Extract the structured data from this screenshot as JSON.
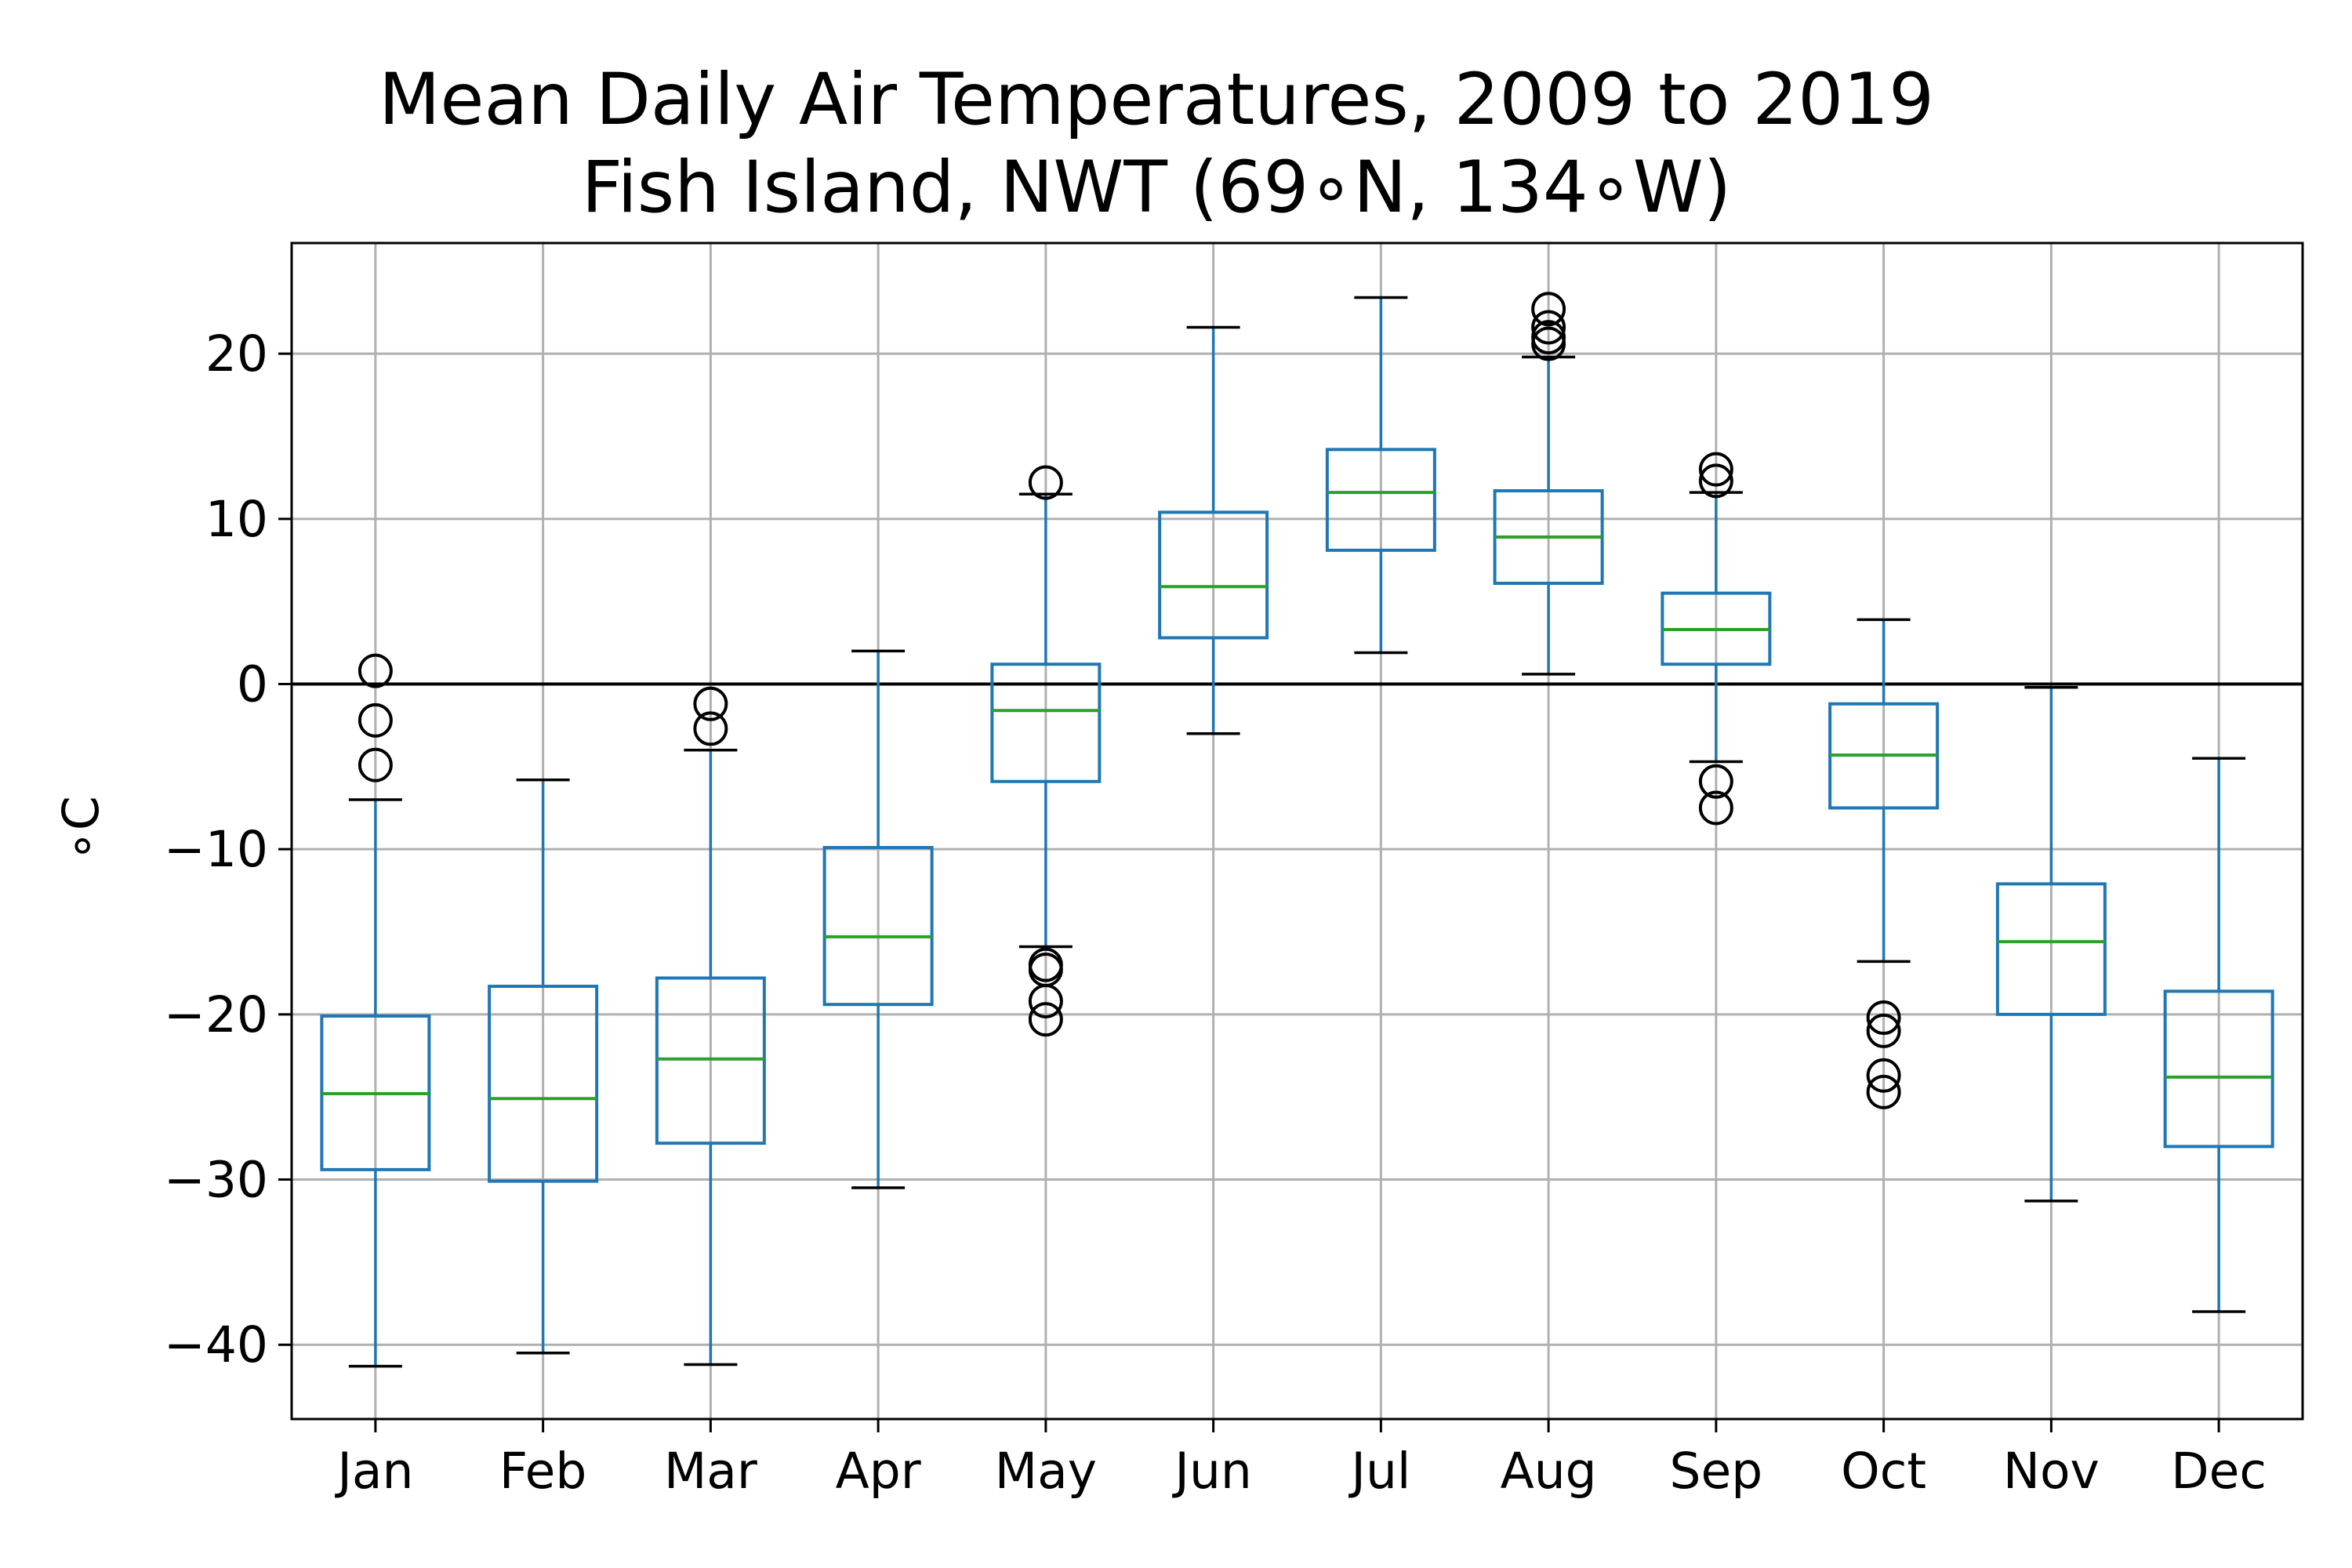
{
  "chart_data": {
    "type": "boxplot",
    "title_lines": [
      "Mean Daily Air Temperatures, 2009 to 2019",
      "Fish Island, NWT (69∘N, 134∘W)"
    ],
    "xlabel": "",
    "ylabel": "∘C",
    "ylim": [
      -44.5,
      26.7
    ],
    "yticks": [
      20,
      10,
      0,
      -10,
      -20,
      -30,
      -40
    ],
    "ytick_labels": [
      "20",
      "10",
      "0",
      "−10",
      "−20",
      "−30",
      "−40"
    ],
    "grid": true,
    "zero_line": 0,
    "colors": {
      "box": "#1f77b4",
      "median": "#2ca02c",
      "whisker_cap": "#000000",
      "outlier": "#000000",
      "grid": "#b0b0b0"
    },
    "categories": [
      "Jan",
      "Feb",
      "Mar",
      "Apr",
      "May",
      "Jun",
      "Jul",
      "Aug",
      "Sep",
      "Oct",
      "Nov",
      "Dec"
    ],
    "boxes": [
      {
        "label": "Jan",
        "whislo": -41.3,
        "q1": -29.4,
        "med": -24.8,
        "q3": -20.1,
        "whishi": -7.0,
        "fliers": [
          0.8,
          -2.2,
          -4.9
        ]
      },
      {
        "label": "Feb",
        "whislo": -40.5,
        "q1": -30.1,
        "med": -25.1,
        "q3": -18.3,
        "whishi": -5.8,
        "fliers": []
      },
      {
        "label": "Mar",
        "whislo": -41.2,
        "q1": -27.8,
        "med": -22.7,
        "q3": -17.8,
        "whishi": -4.0,
        "fliers": [
          -1.2,
          -2.7
        ]
      },
      {
        "label": "Apr",
        "whislo": -30.5,
        "q1": -19.4,
        "med": -15.3,
        "q3": -9.9,
        "whishi": 2.0,
        "fliers": []
      },
      {
        "label": "May",
        "whislo": -15.9,
        "q1": -5.9,
        "med": -1.6,
        "q3": 1.2,
        "whishi": 11.5,
        "fliers": [
          12.2,
          -17.0,
          -17.3,
          -19.2,
          -20.3
        ]
      },
      {
        "label": "Jun",
        "whislo": -3.0,
        "q1": 2.8,
        "med": 5.9,
        "q3": 10.4,
        "whishi": 21.6,
        "fliers": []
      },
      {
        "label": "Jul",
        "whislo": 1.9,
        "q1": 8.1,
        "med": 11.6,
        "q3": 14.2,
        "whishi": 23.4,
        "fliers": []
      },
      {
        "label": "Aug",
        "whislo": 0.6,
        "q1": 6.1,
        "med": 8.9,
        "q3": 11.7,
        "whishi": 19.8,
        "fliers": [
          22.7,
          21.6,
          21.0,
          20.6
        ]
      },
      {
        "label": "Sep",
        "whislo": -4.7,
        "q1": 1.2,
        "med": 3.3,
        "q3": 5.5,
        "whishi": 11.6,
        "fliers": [
          13.0,
          12.3,
          -5.9,
          -7.5
        ]
      },
      {
        "label": "Oct",
        "whislo": -16.8,
        "q1": -7.5,
        "med": -4.3,
        "q3": -1.2,
        "whishi": 3.9,
        "fliers": [
          -20.2,
          -21.0,
          -23.7,
          -24.7
        ]
      },
      {
        "label": "Nov",
        "whislo": -31.3,
        "q1": -20.0,
        "med": -15.6,
        "q3": -12.1,
        "whishi": -0.2,
        "fliers": []
      },
      {
        "label": "Dec",
        "whislo": -38.0,
        "q1": -28.0,
        "med": -23.8,
        "q3": -18.6,
        "whishi": -4.5,
        "fliers": []
      }
    ]
  }
}
